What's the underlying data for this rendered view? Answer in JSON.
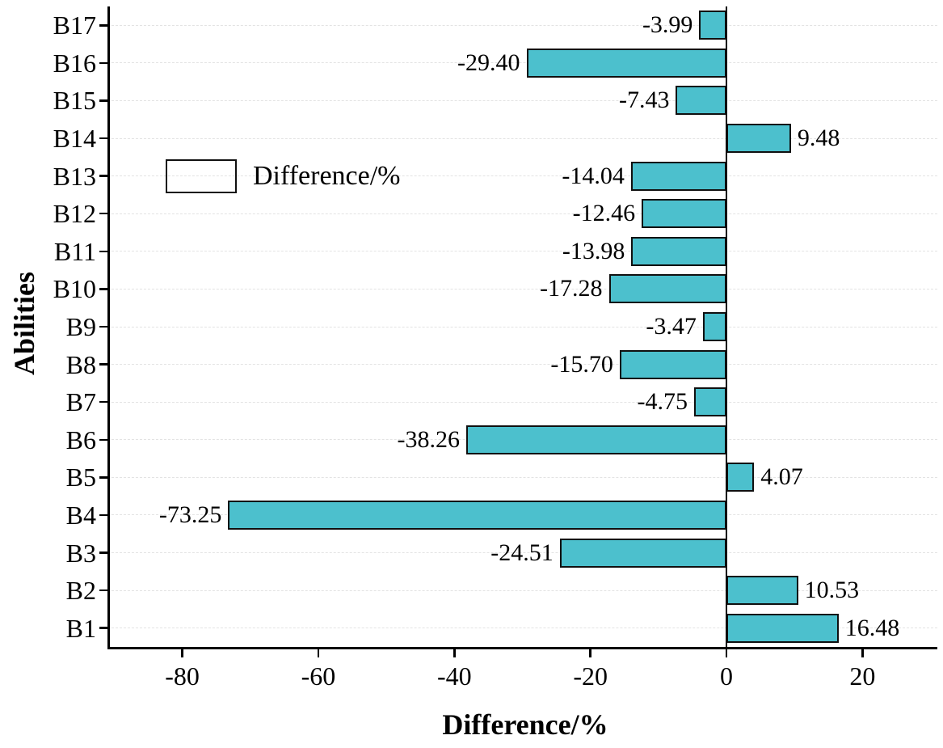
{
  "chart_data": {
    "type": "bar",
    "orientation": "horizontal",
    "title": "",
    "xlabel": "Difference/%",
    "ylabel": "Abilities",
    "categories": [
      "B1",
      "B2",
      "B3",
      "B4",
      "B5",
      "B6",
      "B7",
      "B8",
      "B9",
      "B10",
      "B11",
      "B12",
      "B13",
      "B14",
      "B15",
      "B16",
      "B17"
    ],
    "values": [
      16.48,
      10.53,
      -24.51,
      -73.25,
      4.07,
      -38.26,
      -4.75,
      -15.7,
      -3.47,
      -17.28,
      -13.98,
      -12.46,
      -14.04,
      9.48,
      -7.43,
      -29.4,
      -3.99
    ],
    "value_labels": [
      "16.48",
      "10.53",
      "-24.51",
      "-73.25",
      "4.07",
      "-38.26",
      "-4.75",
      "-15.70",
      "-3.47",
      "-17.28",
      "-13.98",
      "-12.46",
      "-14.04",
      "9.48",
      "-7.43",
      "-29.40",
      "-3.99"
    ],
    "xlim": [
      -91,
      31
    ],
    "xticks": [
      -80,
      -60,
      -40,
      -20,
      0,
      20
    ],
    "xtick_labels": [
      "-80",
      "-60",
      "-40",
      "-20",
      "0",
      "20"
    ],
    "y_order": "B1 at bottom, B17 at top",
    "grid": true,
    "legend": {
      "label": "Difference/%",
      "position": "inside-upper-left"
    },
    "colors": {
      "bar_fill": "#4cc0cd",
      "bar_border": "#101010",
      "axis": "#000000",
      "grid": "#e3e3e3",
      "background": "#ffffff"
    }
  }
}
